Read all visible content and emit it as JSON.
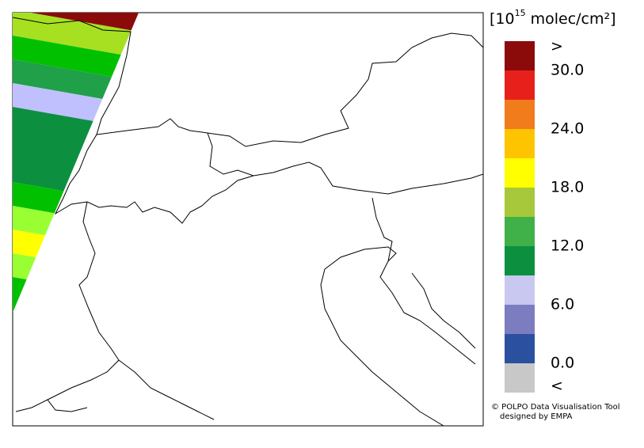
{
  "colorbar": {
    "title_prefix": "[10",
    "title_exponent": "15",
    "title_suffix": "molec/cm²]",
    "labels": [
      ">",
      "30.0",
      "24.0",
      "18.0",
      "12.0",
      "6.0",
      "0.0",
      "<"
    ],
    "colors": [
      "#8b0a0a",
      "#e8201c",
      "#f07c1c",
      "#ffc400",
      "#ffff00",
      "#a6c83a",
      "#40b048",
      "#0c9040",
      "#c8c8f0",
      "#7c7cc0",
      "#2c50a0",
      "#c8c8c8"
    ]
  },
  "credit": {
    "line1": "© POLPO Data Visualisation Tool",
    "line2": "designed by EMPA"
  }
}
